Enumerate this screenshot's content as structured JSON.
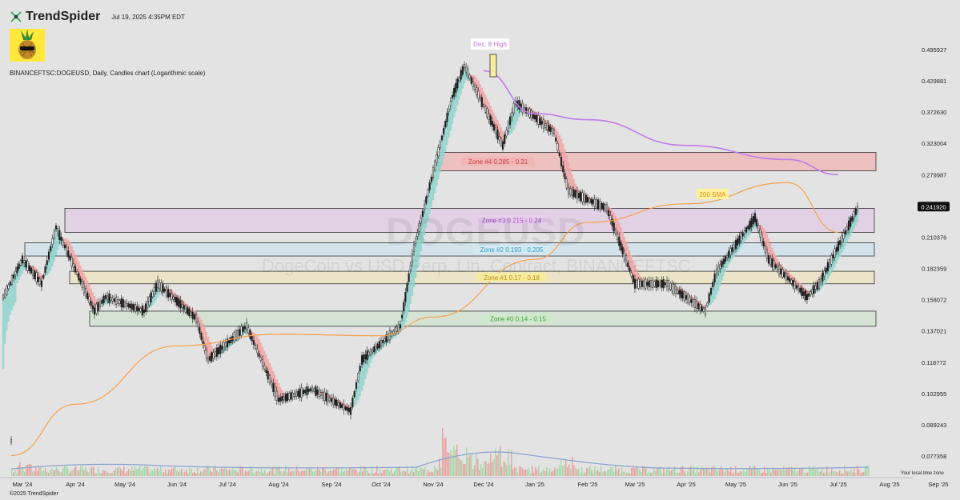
{
  "header": {
    "brand": "TrendSpider",
    "timestamp": "Jul 19, 2025 4:35PM EDT",
    "symbol_line": "BINANCEFTSC:DOGEUSD, Daily, Candles chart (Logarithmic scale)"
  },
  "footer": {
    "copyright": "©2025 TrendSpider",
    "local_tz": "Your local time zone"
  },
  "watermark": {
    "ticker": "DOGEUSD",
    "description": "DogeCoin vs USD Perp. Lin. Contract, BINANCEFTSC"
  },
  "colors": {
    "background": "#e3e3e3",
    "up_candle": "#1d1d1d",
    "down_candle": "#1d1d1d",
    "sma200": "#f5a04a",
    "purple_ma": "#c07be8",
    "ribbon_up": "#8fd4cc",
    "ribbon_down": "#f1a4a4"
  },
  "chart_data": {
    "type": "candlestick",
    "scale": "logarithmic",
    "x_labels": [
      "Mar '24",
      "Apr '24",
      "May '24",
      "Jun '24",
      "Jul '24",
      "Aug '24",
      "Sep '24",
      "Oct '24",
      "Nov '24",
      "Dec '24",
      "Jan '25",
      "Feb '25",
      "Mar '25",
      "Apr '25",
      "May '25",
      "Jun '25",
      "Jul '25",
      "Aug '25",
      "Sep '25"
    ],
    "y_ticks": [
      "0.495927",
      "0.429881",
      "0.372630",
      "0.323004",
      "0.279987",
      "0.210376",
      "0.182359",
      "0.158072",
      "0.137021",
      "0.118772",
      "0.102955",
      "0.089243",
      "0.077358"
    ],
    "current_price": "0.241920",
    "price_path": [
      {
        "date": "Feb '24",
        "value": 0.083
      },
      {
        "date": "Mar '24",
        "value": 0.16
      },
      {
        "date": "Mar '24",
        "value": 0.19
      },
      {
        "date": "Mar '24",
        "value": 0.17
      },
      {
        "date": "Apr '24",
        "value": 0.22
      },
      {
        "date": "Apr '24",
        "value": 0.15
      },
      {
        "date": "May '24",
        "value": 0.16
      },
      {
        "date": "May '24",
        "value": 0.15
      },
      {
        "date": "Jun '24",
        "value": 0.17
      },
      {
        "date": "Jun '24",
        "value": 0.145
      },
      {
        "date": "Jul '24",
        "value": 0.12
      },
      {
        "date": "Jul '24",
        "value": 0.14
      },
      {
        "date": "Aug '24",
        "value": 0.1
      },
      {
        "date": "Sep '24",
        "value": 0.105
      },
      {
        "date": "Sep '24",
        "value": 0.095
      },
      {
        "date": "Oct '24",
        "value": 0.12
      },
      {
        "date": "Oct '24",
        "value": 0.14
      },
      {
        "date": "Nov '24",
        "value": 0.2
      },
      {
        "date": "Nov '24",
        "value": 0.4
      },
      {
        "date": "Dec '24",
        "value": 0.46
      },
      {
        "date": "Dec '24",
        "value": 0.32
      },
      {
        "date": "Jan '25",
        "value": 0.39
      },
      {
        "date": "Jan '25",
        "value": 0.34
      },
      {
        "date": "Feb '25",
        "value": 0.26
      },
      {
        "date": "Feb '25",
        "value": 0.24
      },
      {
        "date": "Mar '25",
        "value": 0.17
      },
      {
        "date": "Apr '25",
        "value": 0.17
      },
      {
        "date": "Apr '25",
        "value": 0.15
      },
      {
        "date": "May '25",
        "value": 0.18
      },
      {
        "date": "May '25",
        "value": 0.23
      },
      {
        "date": "Jun '25",
        "value": 0.19
      },
      {
        "date": "Jun '25",
        "value": 0.16
      },
      {
        "date": "Jul '25",
        "value": 0.17
      },
      {
        "date": "Jul '25",
        "value": 0.24
      }
    ],
    "sma200": [
      {
        "date": "Feb '24",
        "value": 0.0775
      },
      {
        "date": "Apr '24",
        "value": 0.098
      },
      {
        "date": "Jun '24",
        "value": 0.128
      },
      {
        "date": "Aug '24",
        "value": 0.135
      },
      {
        "date": "Oct '24",
        "value": 0.134
      },
      {
        "date": "Nov '24",
        "value": 0.146
      },
      {
        "date": "Jan '25",
        "value": 0.19
      },
      {
        "date": "Feb '25",
        "value": 0.225
      },
      {
        "date": "Apr '25",
        "value": 0.245
      },
      {
        "date": "Jun '25",
        "value": 0.27
      },
      {
        "date": "Jul '25",
        "value": 0.215
      }
    ],
    "purple_ma": [
      {
        "date": "Dec '24",
        "value": 0.45
      },
      {
        "date": "Jan '25",
        "value": 0.37
      },
      {
        "date": "Feb '25",
        "value": 0.36
      },
      {
        "date": "Apr '25",
        "value": 0.32
      },
      {
        "date": "Jun '25",
        "value": 0.3
      },
      {
        "date": "Jul '25",
        "value": 0.28
      }
    ],
    "zones": [
      {
        "label": "Zone #4 0.285 - 0.31",
        "low": 0.285,
        "high": 0.31,
        "color": "#f2b6b6",
        "label_bg": "#f2b6b6",
        "label_color": "#c63c3c"
      },
      {
        "label": "Zone #3 0.215 - 0.24",
        "low": 0.215,
        "high": 0.24,
        "color": "#e2cbe6",
        "label_bg": "#e8cfee",
        "label_color": "#a54fc0"
      },
      {
        "label": "Zone #2 0.193 - 0.205",
        "low": 0.193,
        "high": 0.205,
        "color": "#cfe3ee",
        "label_bg": "#d4e8f2",
        "label_color": "#2d9dc0"
      },
      {
        "label": "Zone #1 0.17 - 0.18",
        "low": 0.17,
        "high": 0.18,
        "color": "#eee4c0",
        "label_bg": "#f6ec9e",
        "label_color": "#c08b12"
      },
      {
        "label": "Zone #0 0.14 - 0.15",
        "low": 0.14,
        "high": 0.15,
        "color": "#cfe3cd",
        "label_bg": "#cfe9cd",
        "label_color": "#3c9e3c"
      }
    ],
    "annotations": [
      {
        "text": "Dec. 8 High",
        "color": "#c26fd6"
      },
      {
        "text": "200 SMA",
        "color": "#e58a1e",
        "bg": "#fff29a"
      }
    ]
  }
}
